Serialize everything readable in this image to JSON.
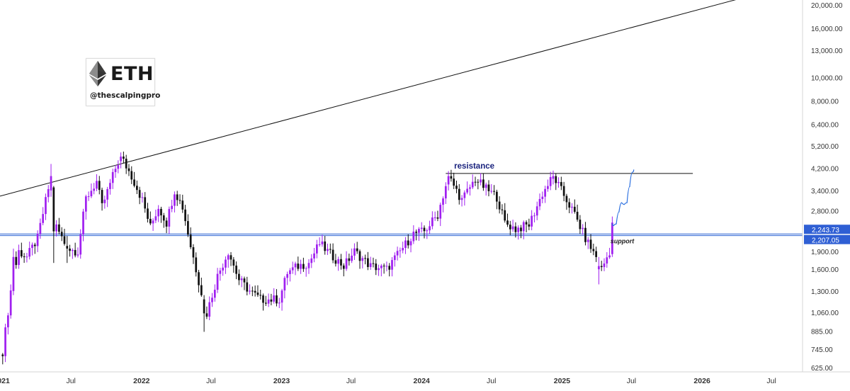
{
  "brand": {
    "ticker": "ETH",
    "handle": "@thescalpingpro",
    "logo_icon": "ethereum-diamond-icon"
  },
  "colors": {
    "bull": "#a020f0",
    "bear": "#111111",
    "support": "#3b6fd6",
    "trendline": "#111111",
    "resistance": "#111111",
    "price_label_bg": "#2f5fd4",
    "projection": "#2a6fe0",
    "annotation_text": "#1a237e"
  },
  "chart_data": {
    "type": "candlestick",
    "title": "",
    "y_scale": "log",
    "ylim": [
      600,
      21000
    ],
    "xlim": [
      "2020-12-28",
      "2026-09-20"
    ],
    "y_ticks": [
      "20,000.00",
      "16,000.00",
      "13,000.00",
      "10,000.00",
      "8,000.00",
      "6,400.00",
      "5,200.00",
      "4,200.00",
      "3,400.00",
      "2,800.00",
      "1,900.00",
      "1,600.00",
      "1,300.00",
      "1,060.00",
      "885.00",
      "745.00",
      "625.00"
    ],
    "x_ticks": [
      {
        "label": "2021",
        "date": "2021-01-01"
      },
      {
        "label": "Jul",
        "date": "2021-07-01"
      },
      {
        "label": "2022",
        "date": "2022-01-01"
      },
      {
        "label": "Jul",
        "date": "2022-07-01"
      },
      {
        "label": "2023",
        "date": "2023-01-01"
      },
      {
        "label": "Jul",
        "date": "2023-07-01"
      },
      {
        "label": "2024",
        "date": "2024-01-01"
      },
      {
        "label": "Jul",
        "date": "2024-07-01"
      },
      {
        "label": "2025",
        "date": "2025-01-01"
      },
      {
        "label": "Jul",
        "date": "2025-07-01"
      },
      {
        "label": "2026",
        "date": "2026-01-01"
      },
      {
        "label": "Jul",
        "date": "2026-07-01"
      }
    ],
    "price_path": [
      [
        "2021-01-04",
        730
      ],
      [
        "2021-01-25",
        1300
      ],
      [
        "2021-02-15",
        1900
      ],
      [
        "2021-03-08",
        1800
      ],
      [
        "2021-04-05",
        2150
      ],
      [
        "2021-05-10",
        3900
      ],
      [
        "2021-05-24",
        2400
      ],
      [
        "2021-06-21",
        1950
      ],
      [
        "2021-07-19",
        1900
      ],
      [
        "2021-08-09",
        3150
      ],
      [
        "2021-09-06",
        3700
      ],
      [
        "2021-09-20",
        2900
      ],
      [
        "2021-10-25",
        4200
      ],
      [
        "2021-11-08",
        4700
      ],
      [
        "2021-12-06",
        3900
      ],
      [
        "2022-01-03",
        3100
      ],
      [
        "2022-01-24",
        2400
      ],
      [
        "2022-02-14",
        2900
      ],
      [
        "2022-03-07",
        2500
      ],
      [
        "2022-03-28",
        3400
      ],
      [
        "2022-04-18",
        2900
      ],
      [
        "2022-05-09",
        2000
      ],
      [
        "2022-06-13",
        1150
      ],
      [
        "2022-06-20",
        1050
      ],
      [
        "2022-07-18",
        1500
      ],
      [
        "2022-08-15",
        1900
      ],
      [
        "2022-09-12",
        1450
      ],
      [
        "2022-10-10",
        1300
      ],
      [
        "2022-11-07",
        1200
      ],
      [
        "2022-12-26",
        1200
      ],
      [
        "2023-01-16",
        1550
      ],
      [
        "2023-02-13",
        1650
      ],
      [
        "2023-03-13",
        1700
      ],
      [
        "2023-04-10",
        2050
      ],
      [
        "2023-05-08",
        1850
      ],
      [
        "2023-06-12",
        1650
      ],
      [
        "2023-07-10",
        1900
      ],
      [
        "2023-08-21",
        1650
      ],
      [
        "2023-10-02",
        1600
      ],
      [
        "2023-11-06",
        1900
      ],
      [
        "2023-12-11",
        2250
      ],
      [
        "2024-01-08",
        2300
      ],
      [
        "2024-02-12",
        2700
      ],
      [
        "2024-03-11",
        3900
      ],
      [
        "2024-04-15",
        3100
      ],
      [
        "2024-05-20",
        3800
      ],
      [
        "2024-06-17",
        3450
      ],
      [
        "2024-07-15",
        3200
      ],
      [
        "2024-08-05",
        2500
      ],
      [
        "2024-09-02",
        2350
      ],
      [
        "2024-10-07",
        2450
      ],
      [
        "2024-11-11",
        3300
      ],
      [
        "2024-12-09",
        3900
      ],
      [
        "2025-01-06",
        3250
      ],
      [
        "2025-02-03",
        2700
      ],
      [
        "2025-03-03",
        2150
      ],
      [
        "2025-03-31",
        1800
      ],
      [
        "2025-04-14",
        1600
      ],
      [
        "2025-05-05",
        1900
      ],
      [
        "2025-05-12",
        2500
      ]
    ],
    "candles": [
      {
        "date": "2021-02-01",
        "open": 1300,
        "high": 1950,
        "low": 1250,
        "close": 1800
      },
      {
        "date": "2021-05-10",
        "open": 3400,
        "high": 4380,
        "low": 3200,
        "close": 3900
      },
      {
        "date": "2021-05-17",
        "open": 3500,
        "high": 3550,
        "low": 1700,
        "close": 2300
      },
      {
        "date": "2021-06-21",
        "open": 2000,
        "high": 2200,
        "low": 1700,
        "close": 1950
      },
      {
        "date": "2021-11-08",
        "open": 4500,
        "high": 4890,
        "low": 4200,
        "close": 4700
      },
      {
        "date": "2022-06-13",
        "open": 1200,
        "high": 1250,
        "low": 880,
        "close": 1050
      },
      {
        "date": "2024-03-11",
        "open": 3600,
        "high": 4090,
        "low": 3400,
        "close": 3900
      },
      {
        "date": "2024-12-09",
        "open": 3800,
        "high": 4110,
        "low": 3600,
        "close": 3900
      },
      {
        "date": "2025-04-07",
        "open": 1600,
        "high": 1800,
        "low": 1385,
        "close": 1650
      },
      {
        "date": "2025-05-12",
        "open": 1850,
        "high": 2650,
        "low": 1800,
        "close": 2500
      }
    ],
    "levels": {
      "support_upper": {
        "value": 2243.73,
        "label": "2,243.73"
      },
      "support_lower": {
        "value": 2207.05,
        "label": "2,207.05"
      },
      "resistance": 4000
    },
    "trendline": {
      "start": [
        "2020-12-28",
        3220
      ],
      "end": [
        "2026-04-20",
        21500
      ]
    },
    "resistance_line": {
      "start": "2024-03-04",
      "end": "2025-12-08"
    },
    "projection": [
      [
        "2025-05-12",
        2480
      ],
      [
        "2025-05-19",
        2380
      ],
      [
        "2025-05-26",
        2560
      ],
      [
        "2025-06-02",
        3000
      ],
      [
        "2025-06-09",
        3050
      ],
      [
        "2025-06-16",
        2900
      ],
      [
        "2025-06-23",
        3150
      ],
      [
        "2025-06-30",
        3950
      ],
      [
        "2025-07-07",
        4150
      ]
    ],
    "annotations": [
      {
        "text": "resistance",
        "date": "2024-03-11",
        "value": 4000
      },
      {
        "text": "support",
        "date": "2025-06-02",
        "value": 2207.05
      }
    ]
  }
}
